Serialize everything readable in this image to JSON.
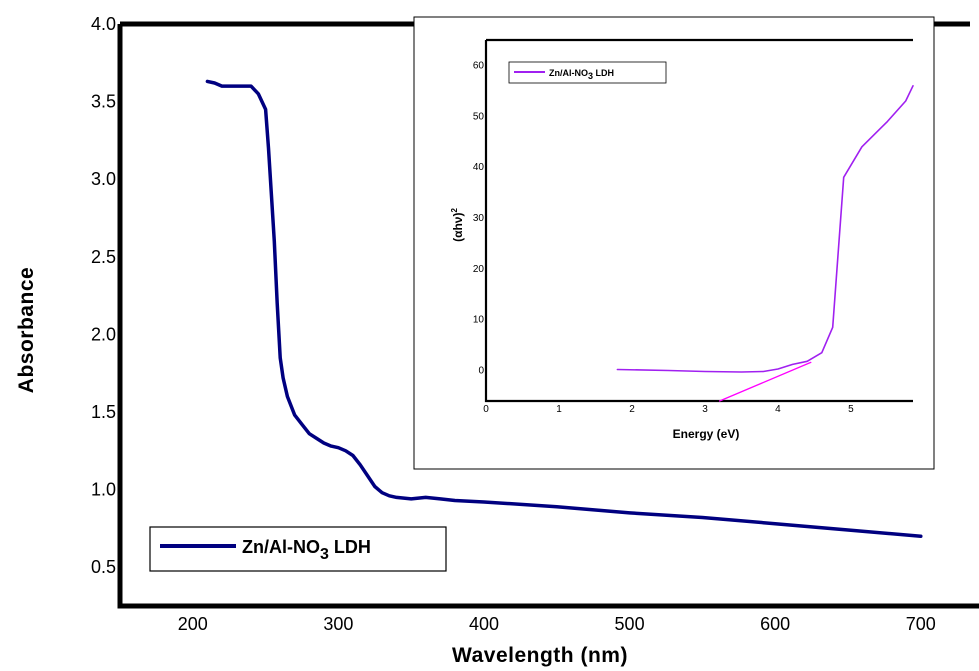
{
  "chart_data": [
    {
      "type": "line",
      "title": "",
      "xlabel": "Wavelength (nm)",
      "ylabel": "Absorbance",
      "xlim": [
        150,
        740
      ],
      "ylim": [
        0.25,
        4.0
      ],
      "x_ticks": [
        200,
        300,
        400,
        500,
        600,
        700
      ],
      "x_tick_labels": [
        "200",
        "300",
        "400",
        "500",
        "600",
        "700"
      ],
      "y_ticks": [
        0.5,
        1.0,
        1.5,
        2.0,
        2.5,
        3.0,
        3.5,
        4.0
      ],
      "y_tick_labels": [
        "0.5",
        "1.0",
        "1.5",
        "2.0",
        "2.5",
        "3.0",
        "3.5",
        "4.0"
      ],
      "grid": false,
      "legend_position": "bottom-left",
      "series": [
        {
          "name": "Zn/Al-NO3 LDH",
          "legend_main": "Zn/Al-NO",
          "legend_sub": "3",
          "legend_tail": " LDH",
          "color": "#000080",
          "x": [
            210,
            215,
            220,
            230,
            240,
            245,
            250,
            252,
            254,
            256,
            258,
            260,
            262,
            265,
            270,
            275,
            280,
            285,
            290,
            295,
            300,
            305,
            310,
            315,
            320,
            325,
            330,
            335,
            340,
            350,
            360,
            370,
            380,
            400,
            450,
            500,
            550,
            600,
            650,
            700
          ],
          "y": [
            3.63,
            3.62,
            3.6,
            3.6,
            3.6,
            3.55,
            3.45,
            3.2,
            2.9,
            2.6,
            2.2,
            1.85,
            1.72,
            1.6,
            1.48,
            1.42,
            1.36,
            1.33,
            1.3,
            1.28,
            1.27,
            1.25,
            1.22,
            1.16,
            1.09,
            1.02,
            0.98,
            0.96,
            0.95,
            0.94,
            0.95,
            0.94,
            0.93,
            0.92,
            0.89,
            0.85,
            0.82,
            0.78,
            0.74,
            0.7
          ]
        }
      ]
    },
    {
      "type": "line",
      "title": "",
      "xlabel": "Energy (eV)",
      "ylabel_main": "(αhν)",
      "ylabel_sup": "2",
      "xlim": [
        0,
        5.85
      ],
      "ylim": [
        -6,
        65
      ],
      "x_ticks": [
        0,
        1,
        2,
        3,
        4,
        5
      ],
      "x_tick_labels": [
        "0",
        "1",
        "2",
        "3",
        "4",
        "5"
      ],
      "y_ticks": [
        0,
        10,
        20,
        30,
        40,
        50,
        60
      ],
      "y_tick_labels": [
        "0",
        "10",
        "20",
        "30",
        "40",
        "50",
        "60"
      ],
      "grid": false,
      "legend_position": "top-left",
      "series": [
        {
          "name": "Zn/Al-NO3 LDH",
          "legend_main": "Zn/Al-NO",
          "legend_sub": "3",
          "legend_tail": " LDH",
          "color": "#a020f0",
          "x": [
            1.8,
            2.5,
            3.0,
            3.5,
            3.8,
            4.0,
            4.2,
            4.4,
            4.6,
            4.75,
            4.9,
            5.15,
            5.5,
            5.75,
            5.85
          ],
          "y": [
            0.2,
            0.0,
            -0.2,
            -0.3,
            -0.2,
            0.3,
            1.2,
            1.8,
            3.5,
            8.5,
            38,
            44,
            49,
            53,
            56
          ]
        },
        {
          "name": "",
          "color": "#ff00ff",
          "x": [
            3.2,
            4.45
          ],
          "y": [
            -6,
            1.6
          ]
        }
      ]
    }
  ]
}
